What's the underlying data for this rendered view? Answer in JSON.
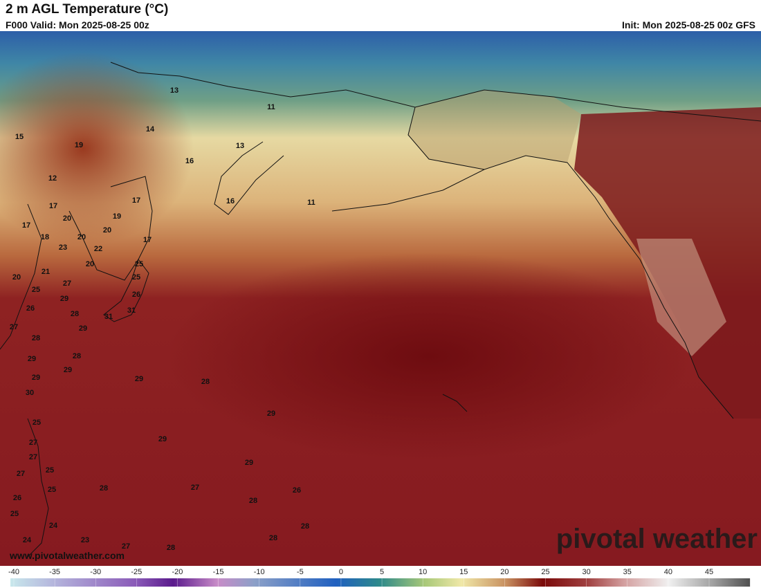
{
  "header": {
    "title": "2 m AGL Temperature (°C)",
    "valid": "F000 Valid: Mon 2025-08-25 00z",
    "init": "Init: Mon 2025-08-25 00z GFS"
  },
  "map_labels": [
    13,
    11,
    14,
    15,
    19,
    13,
    16,
    12,
    17,
    16,
    11,
    17,
    19,
    20,
    17,
    20,
    20,
    18,
    17,
    23,
    22,
    20,
    25,
    21,
    20,
    25,
    27,
    25,
    26,
    29,
    26,
    28,
    31,
    31,
    27,
    29,
    28,
    28,
    29,
    29,
    29,
    29,
    28,
    30,
    29,
    25,
    29,
    27,
    27,
    29,
    27,
    25,
    28,
    27,
    26,
    25,
    28,
    26,
    25,
    24,
    28,
    28,
    24,
    27,
    28,
    23
  ],
  "watermark": "pivotal weather",
  "url": "www.pivotalweather.com",
  "colorbar": {
    "range": [
      -40,
      50
    ],
    "ticks": [
      -40,
      -35,
      -30,
      -25,
      -20,
      -15,
      -10,
      -5,
      0,
      5,
      10,
      15,
      20,
      25,
      30,
      35,
      40,
      45
    ]
  }
}
